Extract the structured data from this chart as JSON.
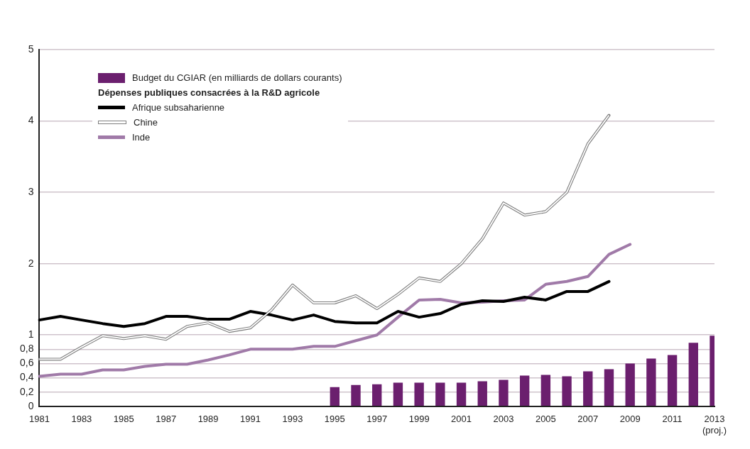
{
  "chart_data": {
    "type": "line",
    "categories": [
      "1981",
      null,
      "1983",
      null,
      "1985",
      null,
      "1987",
      null,
      "1989",
      null,
      "1991",
      null,
      "1993",
      null,
      "1995",
      null,
      "1997",
      null,
      "1999",
      null,
      "2001",
      null,
      "2003",
      null,
      "2005",
      null,
      "2007",
      null,
      "2009",
      null,
      "2011",
      null,
      "2013\n(proj.)"
    ],
    "series": [
      {
        "name": "Budget du CGIAR (en milliards de dollars courants)",
        "type": "bar",
        "color": "#6b1f6e",
        "values": [
          null,
          null,
          null,
          null,
          null,
          null,
          null,
          null,
          null,
          null,
          null,
          null,
          null,
          null,
          0.27,
          0.3,
          0.31,
          0.33,
          0.33,
          0.33,
          0.33,
          0.35,
          0.37,
          0.43,
          0.44,
          0.42,
          0.49,
          0.52,
          0.6,
          0.67,
          0.72,
          0.89,
          0.99
        ]
      },
      {
        "name": "Afrique subsaharienne",
        "color": "#000000",
        "values": [
          1.21,
          1.26,
          1.21,
          1.16,
          1.12,
          1.16,
          1.26,
          1.26,
          1.22,
          1.22,
          1.33,
          1.28,
          1.21,
          1.28,
          1.19,
          1.17,
          1.17,
          1.33,
          1.25,
          1.3,
          1.43,
          1.48,
          1.47,
          1.53,
          1.49,
          1.61,
          1.61,
          1.75,
          null,
          null,
          null,
          null,
          null
        ]
      },
      {
        "name": "Chine",
        "color": "#7f7f7f",
        "values": [
          0.66,
          0.66,
          0.83,
          0.99,
          0.95,
          0.99,
          0.94,
          1.12,
          1.17,
          1.05,
          1.1,
          1.35,
          1.7,
          1.45,
          1.45,
          1.55,
          1.37,
          1.57,
          1.8,
          1.75,
          2.0,
          2.35,
          2.85,
          2.68,
          2.73,
          3.0,
          3.68,
          4.08,
          null,
          null,
          null,
          null,
          null
        ]
      },
      {
        "name": "Inde",
        "color": "#a07aa8",
        "values": [
          0.42,
          0.45,
          0.45,
          0.51,
          0.51,
          0.56,
          0.59,
          0.59,
          0.65,
          0.72,
          0.8,
          0.8,
          0.8,
          0.84,
          0.84,
          0.92,
          1.0,
          1.25,
          1.49,
          1.5,
          1.45,
          1.46,
          1.48,
          1.49,
          1.71,
          1.75,
          1.82,
          2.13,
          2.27,
          null,
          null,
          null,
          null
        ]
      }
    ],
    "legend_title": "Dépenses publiques consacrées à la R&D agricole",
    "legend": "top left",
    "ylim": [
      0,
      5
    ],
    "yticks": [
      0,
      {
        "value": 0.2,
        "label": "0,2"
      },
      {
        "value": 0.4,
        "label": "0,4"
      },
      {
        "value": 0.6,
        "label": "0,6"
      },
      {
        "value": 0.8,
        "label": "0,8"
      },
      1,
      2,
      3,
      4,
      5
    ],
    "grid": "y",
    "marker": "none"
  }
}
